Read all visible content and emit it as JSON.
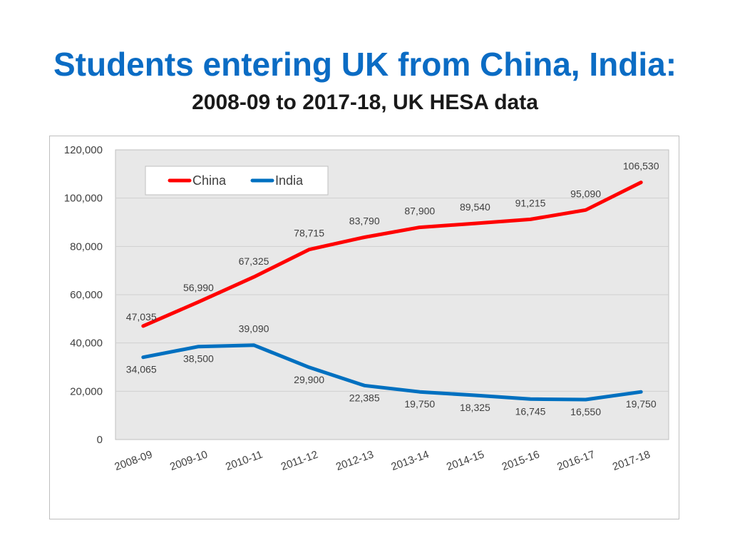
{
  "slide": {
    "title": "Students entering UK from China, India:",
    "subtitle": "2008-09 to 2017-18, UK HESA data"
  },
  "chart_data": {
    "type": "line",
    "title": "",
    "xlabel": "",
    "ylabel": "",
    "categories": [
      "2008-09",
      "2009-10",
      "2010-11",
      "2011-12",
      "2012-13",
      "2013-14",
      "2014-15",
      "2015-16",
      "2016-17",
      "2017-18"
    ],
    "ylim": [
      0,
      120000
    ],
    "y_ticks": [
      0,
      20000,
      40000,
      60000,
      80000,
      100000,
      120000
    ],
    "y_tick_labels": [
      "0",
      "20,000",
      "40,000",
      "60,000",
      "80,000",
      "100,000",
      "120,000"
    ],
    "grid": true,
    "legend_position": "top-left",
    "series": [
      {
        "name": "China",
        "color": "#ff0000",
        "values": [
          47035,
          56990,
          67325,
          78715,
          83790,
          87900,
          89540,
          91215,
          95090,
          106530
        ],
        "labels": [
          "47,035",
          "56,990",
          "67,325",
          "78,715",
          "83,790",
          "87,900",
          "89,540",
          "91,215",
          "95,090",
          "106,530"
        ]
      },
      {
        "name": "India",
        "color": "#0070c0",
        "values": [
          34065,
          38500,
          39090,
          29900,
          22385,
          19750,
          18325,
          16745,
          16550,
          19750
        ],
        "labels": [
          "34,065",
          "38,500",
          "39,090",
          "29,900",
          "22,385",
          "19,750",
          "18,325",
          "16,745",
          "16,550",
          "19,750"
        ]
      }
    ]
  }
}
